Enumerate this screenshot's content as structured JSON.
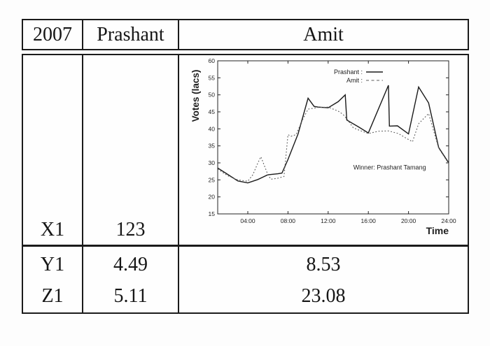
{
  "table": {
    "header": {
      "year": "2007",
      "candidate1": "Prashant",
      "candidate2": "Amit"
    },
    "x_row": {
      "label": "X1",
      "value": "123"
    },
    "stat_rows": [
      {
        "label": "Y1",
        "col2": "4.49",
        "col3": "8.53"
      },
      {
        "label": "Z1",
        "col2": "5.11",
        "col3": "23.08"
      }
    ]
  },
  "chart_data": {
    "type": "line",
    "title": "",
    "xlabel": "Time",
    "ylabel": "Votes (lacs)",
    "xlim": [
      1,
      24
    ],
    "ylim": [
      15,
      60
    ],
    "grid": false,
    "legend_position": "top-right-inside",
    "y_ticks": [
      15,
      20,
      25,
      30,
      35,
      40,
      45,
      50,
      55,
      60
    ],
    "x_ticks": [
      {
        "t": 4,
        "label": "04:00"
      },
      {
        "t": 8,
        "label": "08:00"
      },
      {
        "t": 12,
        "label": "12:00"
      },
      {
        "t": 16,
        "label": "16:00"
      },
      {
        "t": 20,
        "label": "20:00"
      },
      {
        "t": 24,
        "label": "24:00"
      }
    ],
    "annotation": {
      "text": "Winner: Prashant Tamang",
      "x": 14.5,
      "y": 28
    },
    "legend": [
      {
        "label": "Prashant :",
        "style": "solid"
      },
      {
        "label": "Amit :",
        "style": "dashed"
      }
    ],
    "series": [
      {
        "name": "Prashant",
        "style": "solid",
        "color": "#1a1a1a",
        "points": [
          [
            1,
            28.5
          ],
          [
            2,
            26.6
          ],
          [
            3,
            24.7
          ],
          [
            4,
            24.1
          ],
          [
            5,
            25.1
          ],
          [
            6,
            26.5
          ],
          [
            7,
            26.8
          ],
          [
            7.4,
            27.0
          ],
          [
            8,
            31.0
          ],
          [
            9,
            38.5
          ],
          [
            10,
            49.0
          ],
          [
            10.6,
            46.6
          ],
          [
            11,
            46.4
          ],
          [
            12,
            46.2
          ],
          [
            13,
            48.0
          ],
          [
            13.7,
            50.0
          ],
          [
            13.85,
            42.6
          ],
          [
            15,
            40.6
          ],
          [
            16,
            38.8
          ],
          [
            18,
            52.8
          ],
          [
            18.1,
            40.8
          ],
          [
            18.9,
            40.9
          ],
          [
            20,
            38.5
          ],
          [
            21,
            52.3
          ],
          [
            22,
            47.6
          ],
          [
            23,
            34.5
          ],
          [
            24,
            30.0
          ]
        ]
      },
      {
        "name": "Amit",
        "style": "dashed",
        "color": "#5c5c5c",
        "points": [
          [
            1,
            28.2
          ],
          [
            2,
            26.2
          ],
          [
            3,
            25.0
          ],
          [
            4,
            24.6
          ],
          [
            4.5,
            26.5
          ],
          [
            5,
            30.0
          ],
          [
            5.3,
            31.8
          ],
          [
            6,
            26.5
          ],
          [
            6.3,
            25.2
          ],
          [
            7,
            25.5
          ],
          [
            7.6,
            26.0
          ],
          [
            8,
            38.3
          ],
          [
            8.3,
            37.8
          ],
          [
            8.8,
            38.3
          ],
          [
            9.5,
            43.0
          ],
          [
            10,
            45.8
          ],
          [
            11,
            46.3
          ],
          [
            12,
            46.4
          ],
          [
            13,
            45.2
          ],
          [
            13.5,
            44.2
          ],
          [
            14,
            42.4
          ],
          [
            14.5,
            40.3
          ],
          [
            15,
            39.7
          ],
          [
            16,
            38.6
          ],
          [
            17,
            39.3
          ],
          [
            18,
            39.4
          ],
          [
            19,
            38.6
          ],
          [
            19.8,
            37.2
          ],
          [
            20.4,
            36.2
          ],
          [
            21,
            41.5
          ],
          [
            22,
            44.5
          ],
          [
            23,
            34.3
          ],
          [
            24,
            29.8
          ]
        ]
      }
    ]
  }
}
